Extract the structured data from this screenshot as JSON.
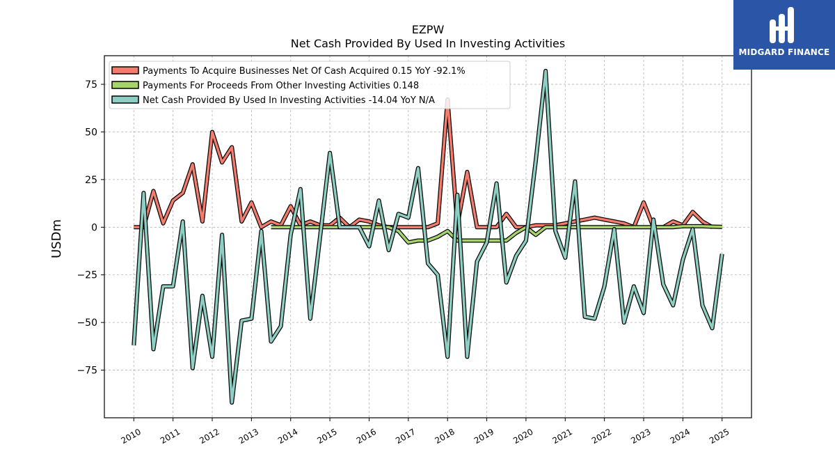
{
  "brand": {
    "name": "MIDGARD FINANCE",
    "color": "#2b56a8"
  },
  "chart_data": {
    "type": "line",
    "title": "EZPW",
    "subtitle": "Net Cash Provided By Used In Investing Activities",
    "ylabel": "USDm",
    "xlabel": "",
    "ylim": [
      -100,
      90
    ],
    "xlim": [
      2009.25,
      2025.75
    ],
    "yticks": [
      -75,
      -50,
      -25,
      0,
      25,
      50,
      75
    ],
    "xticks": [
      2010,
      2011,
      2012,
      2013,
      2014,
      2015,
      2016,
      2017,
      2018,
      2019,
      2020,
      2021,
      2022,
      2023,
      2024,
      2025
    ],
    "grid": true,
    "legend_position": "top-left",
    "series": [
      {
        "name": "Payments To Acquire Businesses Net Of Cash Acquired  0.15 YoY -92.1%",
        "color": "#f47c6c",
        "x": [
          2010.0,
          2010.25,
          2010.5,
          2010.75,
          2011.0,
          2011.25,
          2011.5,
          2011.75,
          2012.0,
          2012.25,
          2012.5,
          2012.75,
          2013.0,
          2013.25,
          2013.5,
          2013.75,
          2014.0,
          2014.25,
          2014.5,
          2014.75,
          2015.0,
          2015.25,
          2015.5,
          2015.75,
          2016.0,
          2016.25,
          2016.5,
          2016.75,
          2017.0,
          2017.25,
          2017.5,
          2017.75,
          2018.0,
          2018.25,
          2018.5,
          2018.75,
          2019.0,
          2019.25,
          2019.5,
          2019.75,
          2020.0,
          2020.25,
          2020.5,
          2020.75,
          2021.0,
          2021.25,
          2021.5,
          2021.75,
          2022.0,
          2022.25,
          2022.5,
          2022.75,
          2023.0,
          2023.25,
          2023.5,
          2023.75,
          2024.0,
          2024.25,
          2024.5,
          2024.75
        ],
        "y": [
          0,
          0,
          19,
          2,
          14,
          18,
          33,
          3,
          50,
          34,
          42,
          3,
          13,
          0,
          3,
          1,
          11,
          1,
          3,
          1,
          1,
          5,
          0,
          4,
          3,
          1,
          0,
          0,
          0,
          0,
          0,
          2,
          67,
          1,
          29,
          0,
          0,
          0,
          7,
          0,
          0,
          1,
          1,
          1,
          2,
          3,
          4,
          5,
          4,
          3,
          2,
          0,
          13,
          0,
          0,
          3,
          1,
          8,
          3,
          0
        ]
      },
      {
        "name": "Payments For Proceeds From Other Investing Activities  0.148",
        "color": "#a6d46a",
        "x": [
          2013.5,
          2013.75,
          2014.0,
          2014.25,
          2014.5,
          2014.75,
          2015.0,
          2015.25,
          2015.5,
          2015.75,
          2016.0,
          2016.25,
          2016.5,
          2016.75,
          2017.0,
          2017.25,
          2017.5,
          2017.75,
          2018.0,
          2018.25,
          2018.5,
          2018.75,
          2019.0,
          2019.25,
          2019.5,
          2019.75,
          2020.0,
          2020.25,
          2020.5,
          2020.75,
          2021.0,
          2021.25,
          2021.5,
          2021.75,
          2022.0,
          2022.25,
          2022.5,
          2022.75,
          2023.0,
          2023.25,
          2023.5,
          2023.75,
          2024.0,
          2024.25,
          2024.5,
          2024.75,
          2025.0
        ],
        "y": [
          0,
          0,
          0,
          0,
          0,
          0,
          0,
          0,
          0,
          0,
          0,
          0,
          0,
          -2,
          -8,
          -7,
          -7,
          -5,
          -2,
          -7,
          -7,
          -7,
          -7,
          -7,
          -7,
          -3,
          0,
          -4,
          0,
          0,
          0,
          0,
          0,
          0,
          0,
          0,
          0,
          0,
          0,
          0,
          0,
          0,
          0.5,
          0.5,
          0.5,
          0.3,
          0.148
        ]
      },
      {
        "name": "Net Cash Provided By Used In Investing Activities  -14.04 YoY N/A",
        "color": "#8ecfc4",
        "x": [
          2010.0,
          2010.25,
          2010.5,
          2010.75,
          2011.0,
          2011.25,
          2011.5,
          2011.75,
          2012.0,
          2012.25,
          2012.5,
          2012.75,
          2013.0,
          2013.25,
          2013.5,
          2013.75,
          2014.0,
          2014.25,
          2014.5,
          2014.75,
          2015.0,
          2015.25,
          2015.5,
          2015.75,
          2016.0,
          2016.25,
          2016.5,
          2016.75,
          2017.0,
          2017.25,
          2017.5,
          2017.75,
          2018.0,
          2018.25,
          2018.5,
          2018.75,
          2019.0,
          2019.25,
          2019.5,
          2019.75,
          2020.0,
          2020.25,
          2020.5,
          2020.75,
          2021.0,
          2021.25,
          2021.5,
          2021.75,
          2022.0,
          2022.25,
          2022.5,
          2022.75,
          2023.0,
          2023.25,
          2023.5,
          2023.75,
          2024.0,
          2024.25,
          2024.5,
          2024.75,
          2025.0
        ],
        "y": [
          -62,
          18,
          -64,
          -31,
          -31,
          3,
          -74,
          -36,
          -68,
          -4,
          -92,
          -49,
          -48,
          -2,
          -60,
          -52,
          -4,
          20,
          -48,
          -5,
          39,
          0,
          0,
          0,
          -10,
          14,
          -12,
          7,
          5,
          31,
          -19,
          -25,
          -68,
          17,
          -68,
          -18,
          -8,
          23,
          -29,
          -15,
          -7,
          35,
          82,
          -2,
          -16,
          24,
          -47,
          -48,
          -31,
          -1,
          -50,
          -31,
          -45,
          4,
          -30,
          -41,
          -17,
          -1,
          -41,
          -53,
          -14.04
        ]
      }
    ]
  }
}
